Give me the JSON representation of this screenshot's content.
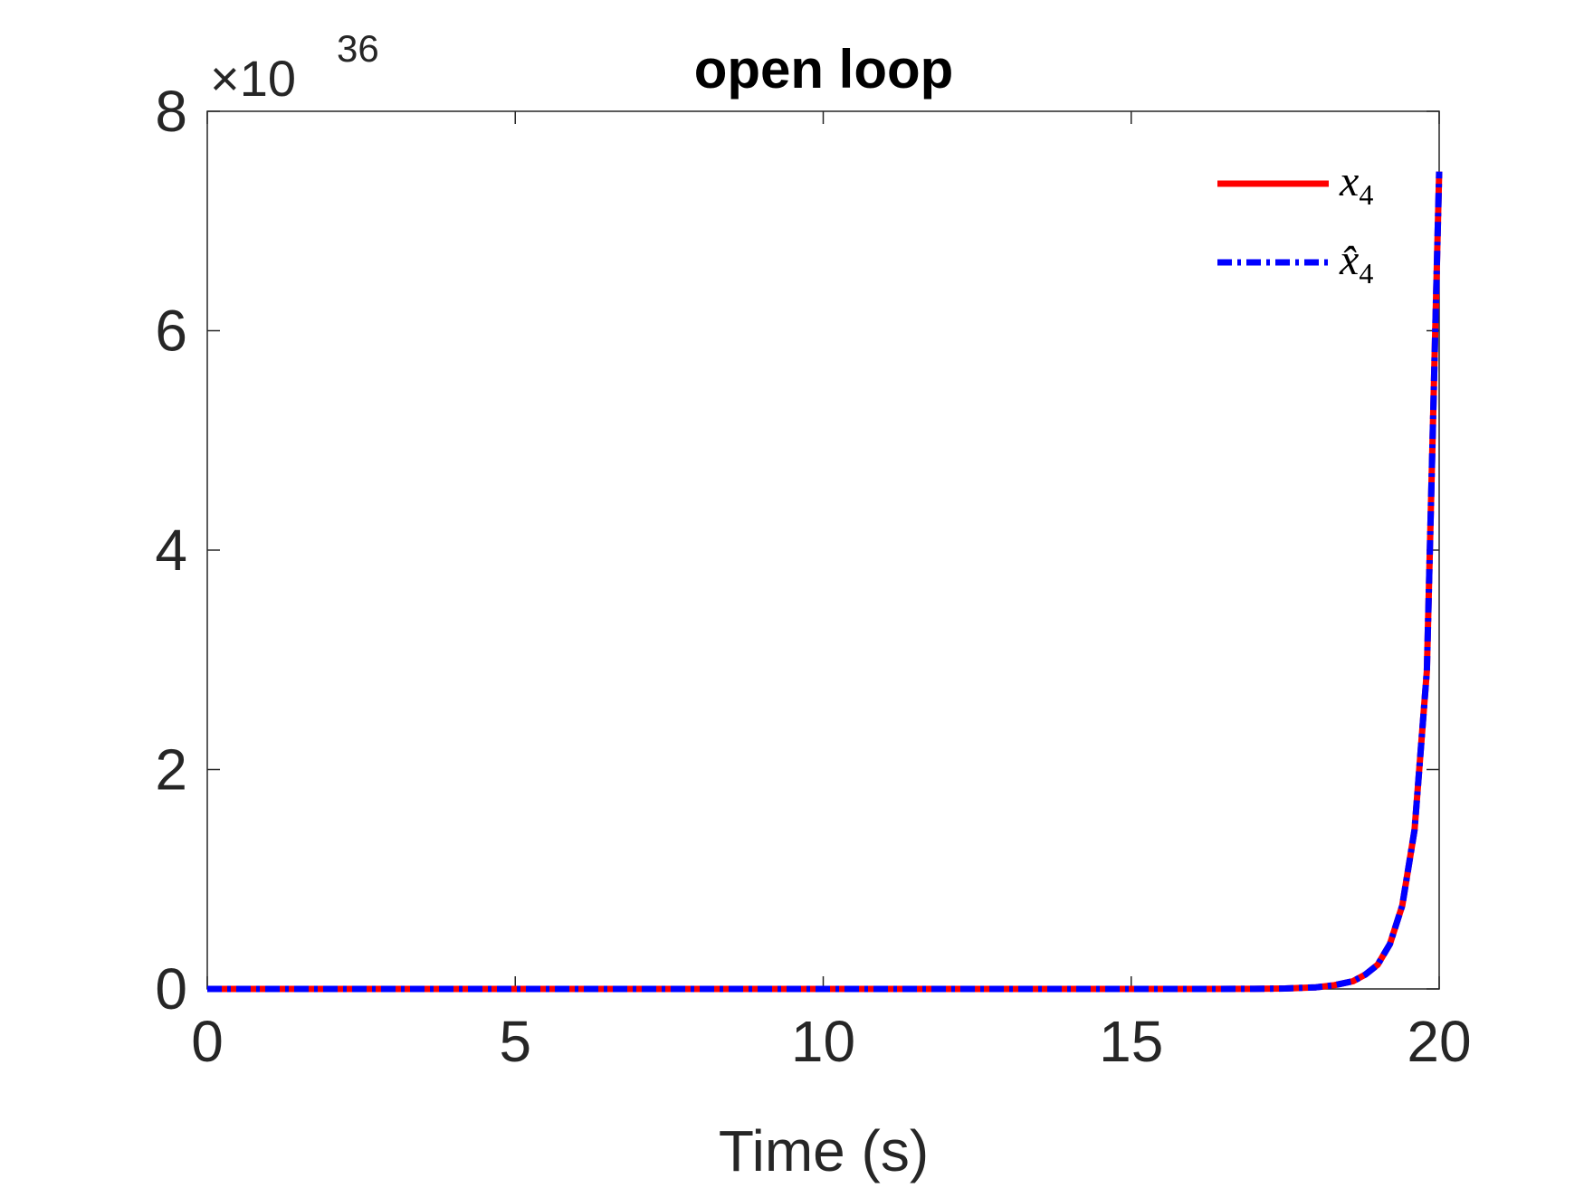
{
  "chart_data": {
    "type": "line",
    "title": "open loop",
    "xlabel": "Time (s)",
    "ylabel": "",
    "xlim": [
      0,
      20
    ],
    "ylim": [
      0,
      8
    ],
    "y_multiplier_label": "×10",
    "y_multiplier_exponent": "36",
    "xticks": [
      0,
      5,
      10,
      15,
      20
    ],
    "xtick_labels": [
      "0",
      "5",
      "10",
      "15",
      "20"
    ],
    "yticks": [
      0,
      2,
      4,
      6,
      8
    ],
    "ytick_labels": [
      "0",
      "2",
      "4",
      "6",
      "8"
    ],
    "grid": false,
    "legend_position": "top-right",
    "series": [
      {
        "name": "x4",
        "legend_base": "x",
        "legend_sub": "4",
        "color": "#ff0000",
        "style": "solid",
        "x": [
          0,
          2,
          4,
          6,
          8,
          10,
          12,
          14,
          16,
          17,
          17.5,
          18,
          18.3,
          18.6,
          18.8,
          19.0,
          19.2,
          19.4,
          19.6,
          19.8,
          20.0
        ],
        "y": [
          0,
          0,
          0,
          0,
          0,
          0,
          0,
          0,
          0.0003,
          0.001,
          0.004,
          0.015,
          0.035,
          0.07,
          0.13,
          0.22,
          0.41,
          0.76,
          1.45,
          2.9,
          7.45
        ]
      },
      {
        "name": "x̂4",
        "legend_base": "x̂",
        "legend_sub": "4",
        "color": "#0000ff",
        "style": "dashdot",
        "x": [
          0,
          2,
          4,
          6,
          8,
          10,
          12,
          14,
          16,
          17,
          17.5,
          18,
          18.3,
          18.6,
          18.8,
          19.0,
          19.2,
          19.4,
          19.6,
          19.8,
          20.0
        ],
        "y": [
          0,
          0,
          0,
          0,
          0,
          0,
          0,
          0,
          0.0003,
          0.001,
          0.004,
          0.015,
          0.035,
          0.07,
          0.13,
          0.22,
          0.41,
          0.76,
          1.45,
          2.9,
          7.45
        ]
      }
    ]
  }
}
